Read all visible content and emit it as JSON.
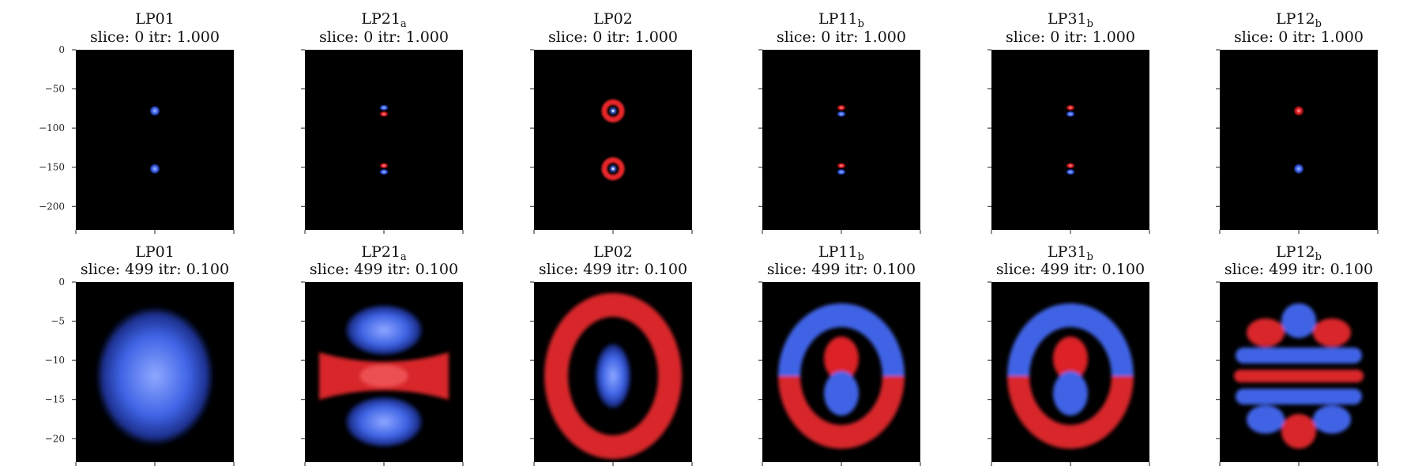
{
  "chart_data": [
    {
      "type": "heatmap",
      "row": 0,
      "col": 0,
      "title_main": "LP01",
      "title_sub": "",
      "title_line2": "slice: 0  itr: 1.000",
      "ylim": [
        0,
        -230
      ],
      "yticks": [
        0,
        -50,
        -100,
        -150,
        -200
      ],
      "ytick_labels": [
        "0",
        "−50",
        "−100",
        "−150",
        "−200"
      ],
      "pattern": "lp01",
      "colormap": "red-black-blue"
    },
    {
      "type": "heatmap",
      "row": 0,
      "col": 1,
      "title_main": "LP21",
      "title_sub": "a",
      "title_line2": "slice: 0  itr: 1.000",
      "ylim": [
        0,
        -230
      ],
      "pattern": "lp21a",
      "colormap": "red-black-blue"
    },
    {
      "type": "heatmap",
      "row": 0,
      "col": 2,
      "title_main": "LP02",
      "title_sub": "",
      "title_line2": "slice: 0  itr: 1.000",
      "ylim": [
        0,
        -230
      ],
      "pattern": "lp02",
      "colormap": "red-black-blue"
    },
    {
      "type": "heatmap",
      "row": 0,
      "col": 3,
      "title_main": "LP11",
      "title_sub": "b",
      "title_line2": "slice: 0  itr: 1.000",
      "ylim": [
        0,
        -230
      ],
      "pattern": "lp11b",
      "colormap": "red-black-blue"
    },
    {
      "type": "heatmap",
      "row": 0,
      "col": 4,
      "title_main": "LP31",
      "title_sub": "b",
      "title_line2": "slice: 0  itr: 1.000",
      "ylim": [
        0,
        -230
      ],
      "pattern": "lp31b",
      "colormap": "red-black-blue"
    },
    {
      "type": "heatmap",
      "row": 0,
      "col": 5,
      "title_main": "LP12",
      "title_sub": "b",
      "title_line2": "slice: 0  itr: 1.000",
      "ylim": [
        0,
        -230
      ],
      "pattern": "lp12b",
      "colormap": "red-black-blue"
    },
    {
      "type": "heatmap",
      "row": 1,
      "col": 0,
      "title_main": "LP01",
      "title_sub": "",
      "title_line2": "slice: 499  itr: 0.100",
      "ylim": [
        0,
        -23
      ],
      "yticks": [
        0,
        -5,
        -10,
        -15,
        -20
      ],
      "ytick_labels": [
        "0",
        "−5",
        "−10",
        "−15",
        "−20"
      ],
      "pattern": "lp01",
      "colormap": "red-black-blue"
    },
    {
      "type": "heatmap",
      "row": 1,
      "col": 1,
      "title_main": "LP21",
      "title_sub": "a",
      "title_line2": "slice: 499  itr: 0.100",
      "ylim": [
        0,
        -23
      ],
      "pattern": "lp21a",
      "colormap": "red-black-blue"
    },
    {
      "type": "heatmap",
      "row": 1,
      "col": 2,
      "title_main": "LP02",
      "title_sub": "",
      "title_line2": "slice: 499  itr: 0.100",
      "ylim": [
        0,
        -23
      ],
      "pattern": "lp02",
      "colormap": "red-black-blue"
    },
    {
      "type": "heatmap",
      "row": 1,
      "col": 3,
      "title_main": "LP11",
      "title_sub": "b",
      "title_line2": "slice: 499  itr: 0.100",
      "ylim": [
        0,
        -23
      ],
      "pattern": "lp11b",
      "colormap": "red-black-blue"
    },
    {
      "type": "heatmap",
      "row": 1,
      "col": 4,
      "title_main": "LP31",
      "title_sub": "b",
      "title_line2": "slice: 499  itr: 0.100",
      "ylim": [
        0,
        -23
      ],
      "pattern": "lp31b",
      "colormap": "red-black-blue"
    },
    {
      "type": "heatmap",
      "row": 1,
      "col": 5,
      "title_main": "LP12",
      "title_sub": "b",
      "title_line2": "slice: 499  itr: 0.100",
      "ylim": [
        0,
        -23
      ],
      "pattern": "lp12b",
      "colormap": "red-black-blue"
    }
  ],
  "colors": {
    "positive": "#e8262a",
    "negative": "#3f6cf0",
    "zero": "#000000"
  }
}
